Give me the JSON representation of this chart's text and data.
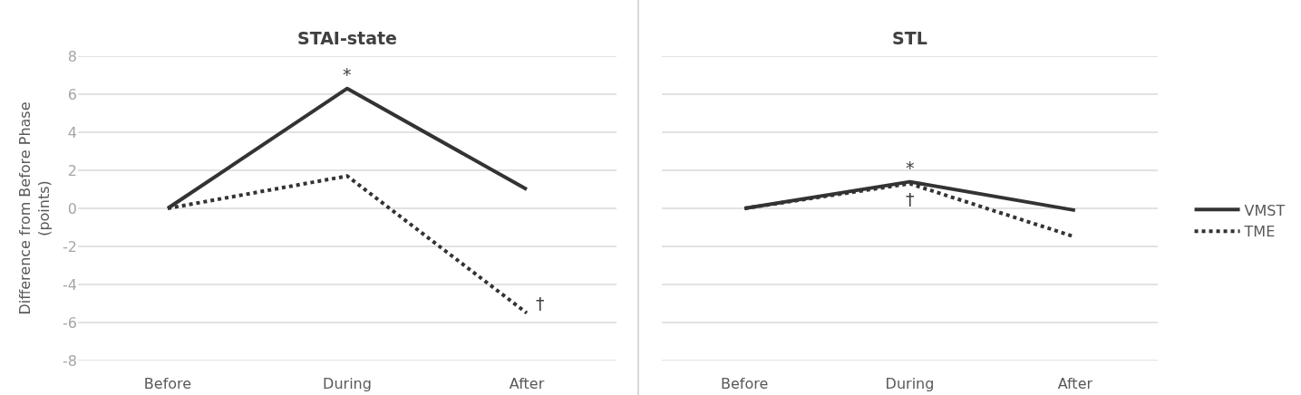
{
  "chart_data": [
    {
      "type": "line",
      "title": "STAI-state",
      "ylabel": "Difference from Before Phase\n(points)",
      "categories": [
        "Before",
        "During",
        "After"
      ],
      "series": [
        {
          "color": "#333333",
          "line_style": "solid",
          "values": [
            0,
            6.3,
            1.0
          ]
        },
        {
          "color": "#333333",
          "line_style": "dotted",
          "values": [
            0,
            1.7,
            -5.5
          ]
        }
      ],
      "ylim": [
        -8,
        8
      ],
      "yticks": [
        -8,
        -6,
        -4,
        -2,
        0,
        2,
        4,
        6,
        8
      ],
      "grid": "y",
      "marker": "none",
      "annotations": [
        {
          "text": "*",
          "x": "During",
          "y": 6.3
        },
        {
          "text": "†",
          "x": "After",
          "y": -5.5
        }
      ]
    },
    {
      "type": "line",
      "title": "STL",
      "categories": [
        "Before",
        "During",
        "After"
      ],
      "series": [
        {
          "name": "VMST",
          "color": "#333333",
          "line_style": "solid",
          "values": [
            0,
            1.4,
            -0.1
          ]
        },
        {
          "name": "TME",
          "color": "#333333",
          "line_style": "dotted",
          "values": [
            0,
            1.3,
            -1.5
          ]
        }
      ],
      "ylim": [
        -8,
        8
      ],
      "yticks": [
        -8,
        -6,
        -4,
        -2,
        0,
        2,
        4,
        6,
        8
      ],
      "grid": "y",
      "marker": "none",
      "tick_labels": "x",
      "legend": "right",
      "annotations": [
        {
          "text": "*",
          "x": "During",
          "y": 1.4
        },
        {
          "text": "†",
          "x": "During",
          "y": 1.3
        }
      ]
    }
  ]
}
